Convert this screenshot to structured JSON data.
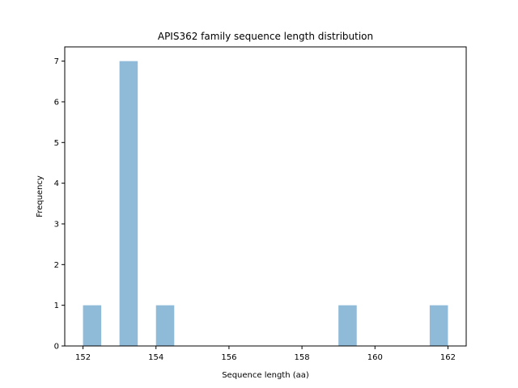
{
  "chart_data": {
    "type": "bar",
    "title": "APIS362 family sequence length distribution",
    "xlabel": "Sequence length (aa)",
    "ylabel": "Frequency",
    "xlim": [
      151.5,
      162.5
    ],
    "ylim": [
      0,
      7.35
    ],
    "xticks": [
      152,
      154,
      156,
      158,
      160,
      162
    ],
    "yticks": [
      0,
      1,
      2,
      3,
      4,
      5,
      6,
      7
    ],
    "bins": [
      {
        "start": 152.0,
        "end": 152.5,
        "value": 1
      },
      {
        "start": 153.0,
        "end": 153.5,
        "value": 7
      },
      {
        "start": 154.0,
        "end": 154.5,
        "value": 1
      },
      {
        "start": 159.0,
        "end": 159.5,
        "value": 1
      },
      {
        "start": 161.5,
        "end": 162.0,
        "value": 1
      }
    ],
    "bar_color": "#8fbad8",
    "grid": false,
    "legend": "none"
  }
}
